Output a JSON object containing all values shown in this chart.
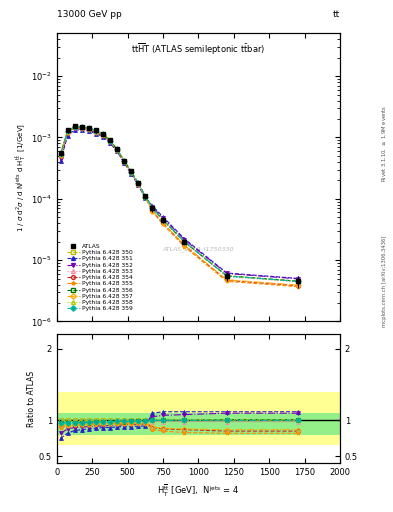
{
  "header_left": "13000 GeV pp",
  "header_right": "tt",
  "plot_title": "tt$\\overline{H}$T (ATLAS semileptonic t$\\bar{t}$bar)",
  "watermark": "ATLAS_2019_I1750330",
  "ylabel_main": "1 / $\\sigma$ d$^{2}\\sigma$ / d N$^{\\rm jets}$ d H$_{\\rm T}^{\\rm t\\bar{t}}$  [1/GeV]",
  "ylabel_ratio": "Ratio to ATLAS",
  "xlabel": "H$_{\\rm T}^{\\rm t\\bar{t}}$ [GeV],  N$^{\\rm jets}$ = 4",
  "right_label_top": "Rivet 3.1.10, ≥ 1.9M events",
  "right_label_bot": "mcplots.cern.ch [arXiv:1306.3436]",
  "x_bins": [
    0,
    50,
    100,
    150,
    200,
    250,
    300,
    350,
    400,
    450,
    500,
    550,
    600,
    650,
    700,
    800,
    1000,
    1400,
    2000
  ],
  "atlas_y": [
    0.00055,
    0.0013,
    0.00155,
    0.0015,
    0.00145,
    0.0013,
    0.00115,
    0.0009,
    0.00065,
    0.00042,
    0.00028,
    0.00018,
    0.00011,
    7e-05,
    4.5e-05,
    2e-05,
    5.5e-06,
    4.5e-06
  ],
  "atlas_err_y": [
    5e-05,
    0.0001,
    0.0001,
    0.0001,
    0.0001,
    0.0001,
    8e-05,
    7e-05,
    5e-05,
    3e-05,
    2e-05,
    1.5e-05,
    1e-05,
    8e-06,
    5e-06,
    2e-06,
    1e-06,
    1e-06
  ],
  "mc_sets": [
    {
      "label": "Pythia 6.428 350",
      "color": "#bbbb00",
      "linestyle": "--",
      "marker": "s",
      "mfc": "none"
    },
    {
      "label": "Pythia 6.428 351",
      "color": "#2222cc",
      "linestyle": "--",
      "marker": "^",
      "mfc": "#2222cc"
    },
    {
      "label": "Pythia 6.428 352",
      "color": "#7700bb",
      "linestyle": "-.",
      "marker": "v",
      "mfc": "#7700bb"
    },
    {
      "label": "Pythia 6.428 353",
      "color": "#ff88aa",
      "linestyle": ":",
      "marker": "^",
      "mfc": "none"
    },
    {
      "label": "Pythia 6.428 354",
      "color": "#cc2222",
      "linestyle": "--",
      "marker": "o",
      "mfc": "none"
    },
    {
      "label": "Pythia 6.428 355",
      "color": "#ff8800",
      "linestyle": "--",
      "marker": "*",
      "mfc": "#ff8800"
    },
    {
      "label": "Pythia 6.428 356",
      "color": "#007700",
      "linestyle": "--",
      "marker": "s",
      "mfc": "none"
    },
    {
      "label": "Pythia 6.428 357",
      "color": "#ffaa00",
      "linestyle": "-.",
      "marker": "D",
      "mfc": "none"
    },
    {
      "label": "Pythia 6.428 358",
      "color": "#aacc00",
      "linestyle": ":",
      "marker": "^",
      "mfc": "none"
    },
    {
      "label": "Pythia 6.428 359",
      "color": "#00bbaa",
      "linestyle": "-.",
      "marker": "D",
      "mfc": "#00aa88"
    }
  ],
  "mc_ratios": [
    [
      1.0,
      1.0,
      1.0,
      1.0,
      1.0,
      1.0,
      1.0,
      1.0,
      1.0,
      1.0,
      1.0,
      1.0,
      1.0,
      1.0,
      1.0,
      1.0,
      1.0,
      1.0
    ],
    [
      0.75,
      0.82,
      0.86,
      0.87,
      0.88,
      0.89,
      0.9,
      0.9,
      0.91,
      0.91,
      0.91,
      0.92,
      0.92,
      1.1,
      1.12,
      1.12,
      1.12,
      1.12
    ],
    [
      0.82,
      0.88,
      0.9,
      0.91,
      0.91,
      0.92,
      0.92,
      0.93,
      0.93,
      0.94,
      0.94,
      0.95,
      0.95,
      1.05,
      1.07,
      1.08,
      1.1,
      1.1
    ],
    [
      0.93,
      0.94,
      0.95,
      0.95,
      0.95,
      0.96,
      0.96,
      0.96,
      0.97,
      0.97,
      0.97,
      0.97,
      0.98,
      0.98,
      0.98,
      0.98,
      0.98,
      0.98
    ],
    [
      0.92,
      0.93,
      0.94,
      0.94,
      0.95,
      0.95,
      0.95,
      0.96,
      0.96,
      0.96,
      0.96,
      0.97,
      0.97,
      0.9,
      0.88,
      0.87,
      0.85,
      0.85
    ],
    [
      0.9,
      0.92,
      0.93,
      0.94,
      0.94,
      0.94,
      0.95,
      0.95,
      0.95,
      0.95,
      0.95,
      0.96,
      0.96,
      0.87,
      0.85,
      0.83,
      0.82,
      0.82
    ],
    [
      0.96,
      0.97,
      0.97,
      0.97,
      0.97,
      0.98,
      0.98,
      0.98,
      0.98,
      0.98,
      0.99,
      0.99,
      0.99,
      1.0,
      1.0,
      1.0,
      1.01,
      1.01
    ],
    [
      0.93,
      0.94,
      0.95,
      0.95,
      0.95,
      0.96,
      0.96,
      0.96,
      0.97,
      0.97,
      0.97,
      0.97,
      0.97,
      0.91,
      0.89,
      0.88,
      0.87,
      0.87
    ],
    [
      0.97,
      0.97,
      0.97,
      0.97,
      0.98,
      0.98,
      0.98,
      0.98,
      0.98,
      0.99,
      0.99,
      0.99,
      0.99,
      1.01,
      1.01,
      1.01,
      1.01,
      1.01
    ],
    [
      0.97,
      0.97,
      0.97,
      0.97,
      0.98,
      0.98,
      0.98,
      0.98,
      0.99,
      0.99,
      0.99,
      0.99,
      0.99,
      1.0,
      1.0,
      1.0,
      1.0,
      1.0
    ]
  ],
  "band_yellow_lo": 0.65,
  "band_yellow_hi": 1.4,
  "band_green_lo": 0.8,
  "band_green_hi": 1.1,
  "xlim": [
    0,
    2000
  ],
  "ylim_main": [
    1e-06,
    0.05
  ],
  "ylim_ratio": [
    0.4,
    2.2
  ]
}
